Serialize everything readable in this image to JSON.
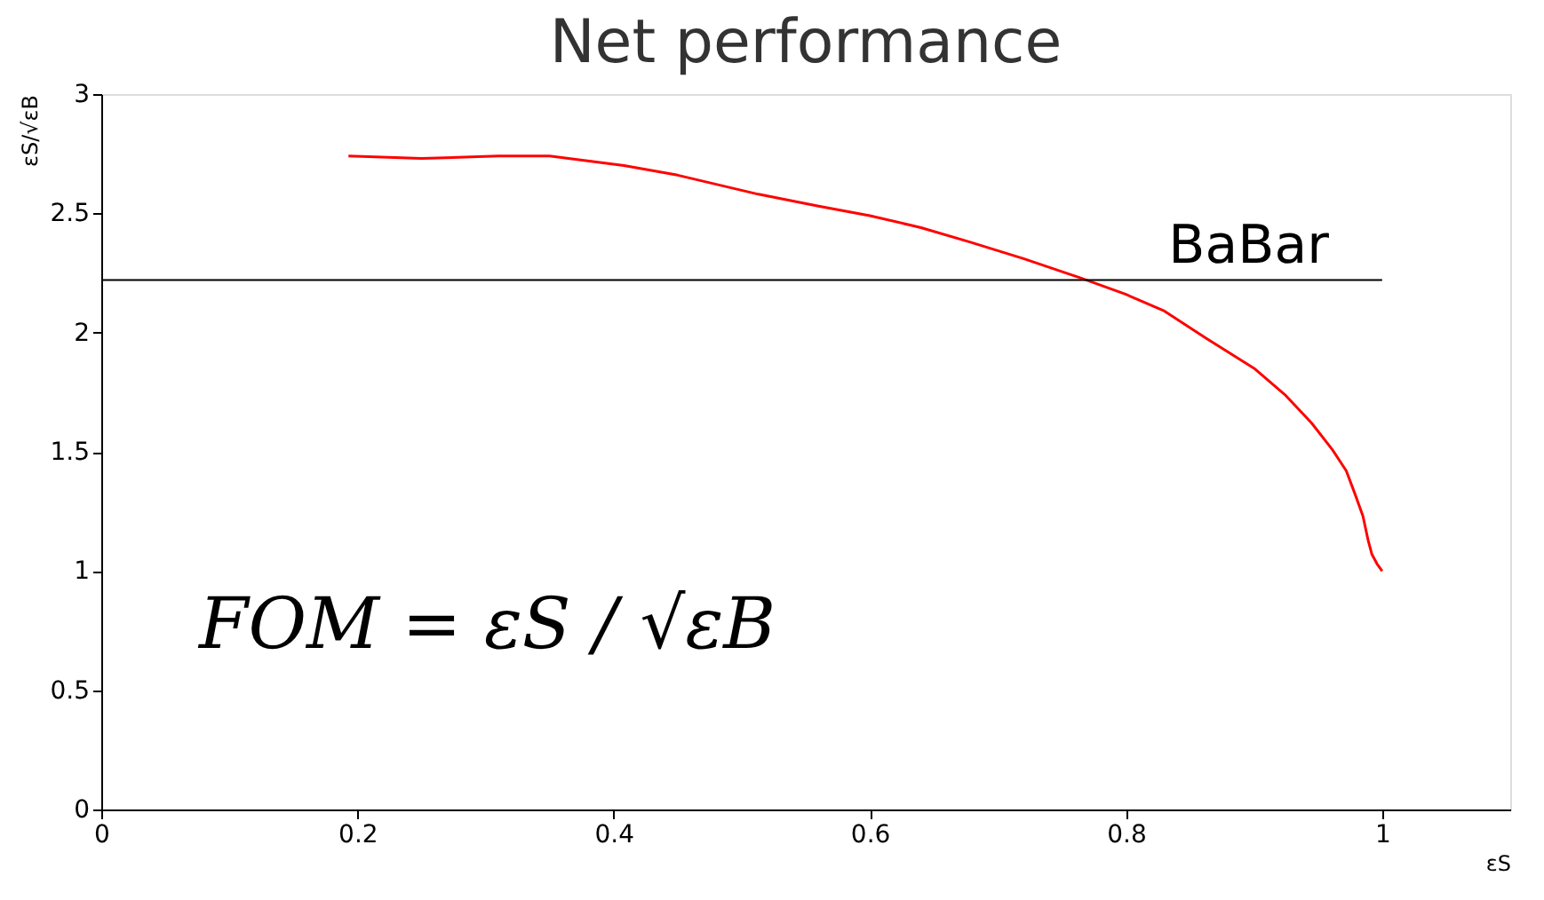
{
  "chart_data": {
    "type": "line",
    "title": "Net performance",
    "xlabel": "εS",
    "ylabel": "εS/√εB",
    "x": [
      0.193,
      0.25,
      0.31,
      0.35,
      0.408,
      0.45,
      0.513,
      0.56,
      0.6,
      0.64,
      0.678,
      0.72,
      0.764,
      0.8,
      0.83,
      0.863,
      0.9,
      0.924,
      0.945,
      0.961,
      0.972,
      0.979,
      0.985,
      0.989,
      0.992,
      0.996,
      1.0
    ],
    "series": [
      {
        "color": "#ff0000",
        "values": [
          2.74,
          2.73,
          2.74,
          2.74,
          2.7,
          2.66,
          2.58,
          2.53,
          2.49,
          2.44,
          2.38,
          2.31,
          2.23,
          2.16,
          2.09,
          1.975,
          1.85,
          1.74,
          1.62,
          1.51,
          1.42,
          1.32,
          1.23,
          1.13,
          1.07,
          1.03,
          1.0
        ]
      }
    ],
    "xlim": [
      0,
      1.1
    ],
    "xticks": [
      0,
      0.2,
      0.4,
      0.6,
      0.8,
      1
    ],
    "ylim": [
      0,
      3
    ],
    "yticks": [
      0,
      0.5,
      1,
      1.5,
      2,
      2.5,
      3
    ],
    "ref_lines": [
      {
        "axis": "y",
        "value": 2.22,
        "label": "BaBar",
        "color": "#000000"
      }
    ],
    "annotations": [
      "FOM = εS / √εB"
    ],
    "grid": false,
    "marker": "none",
    "line_style": "solid"
  }
}
